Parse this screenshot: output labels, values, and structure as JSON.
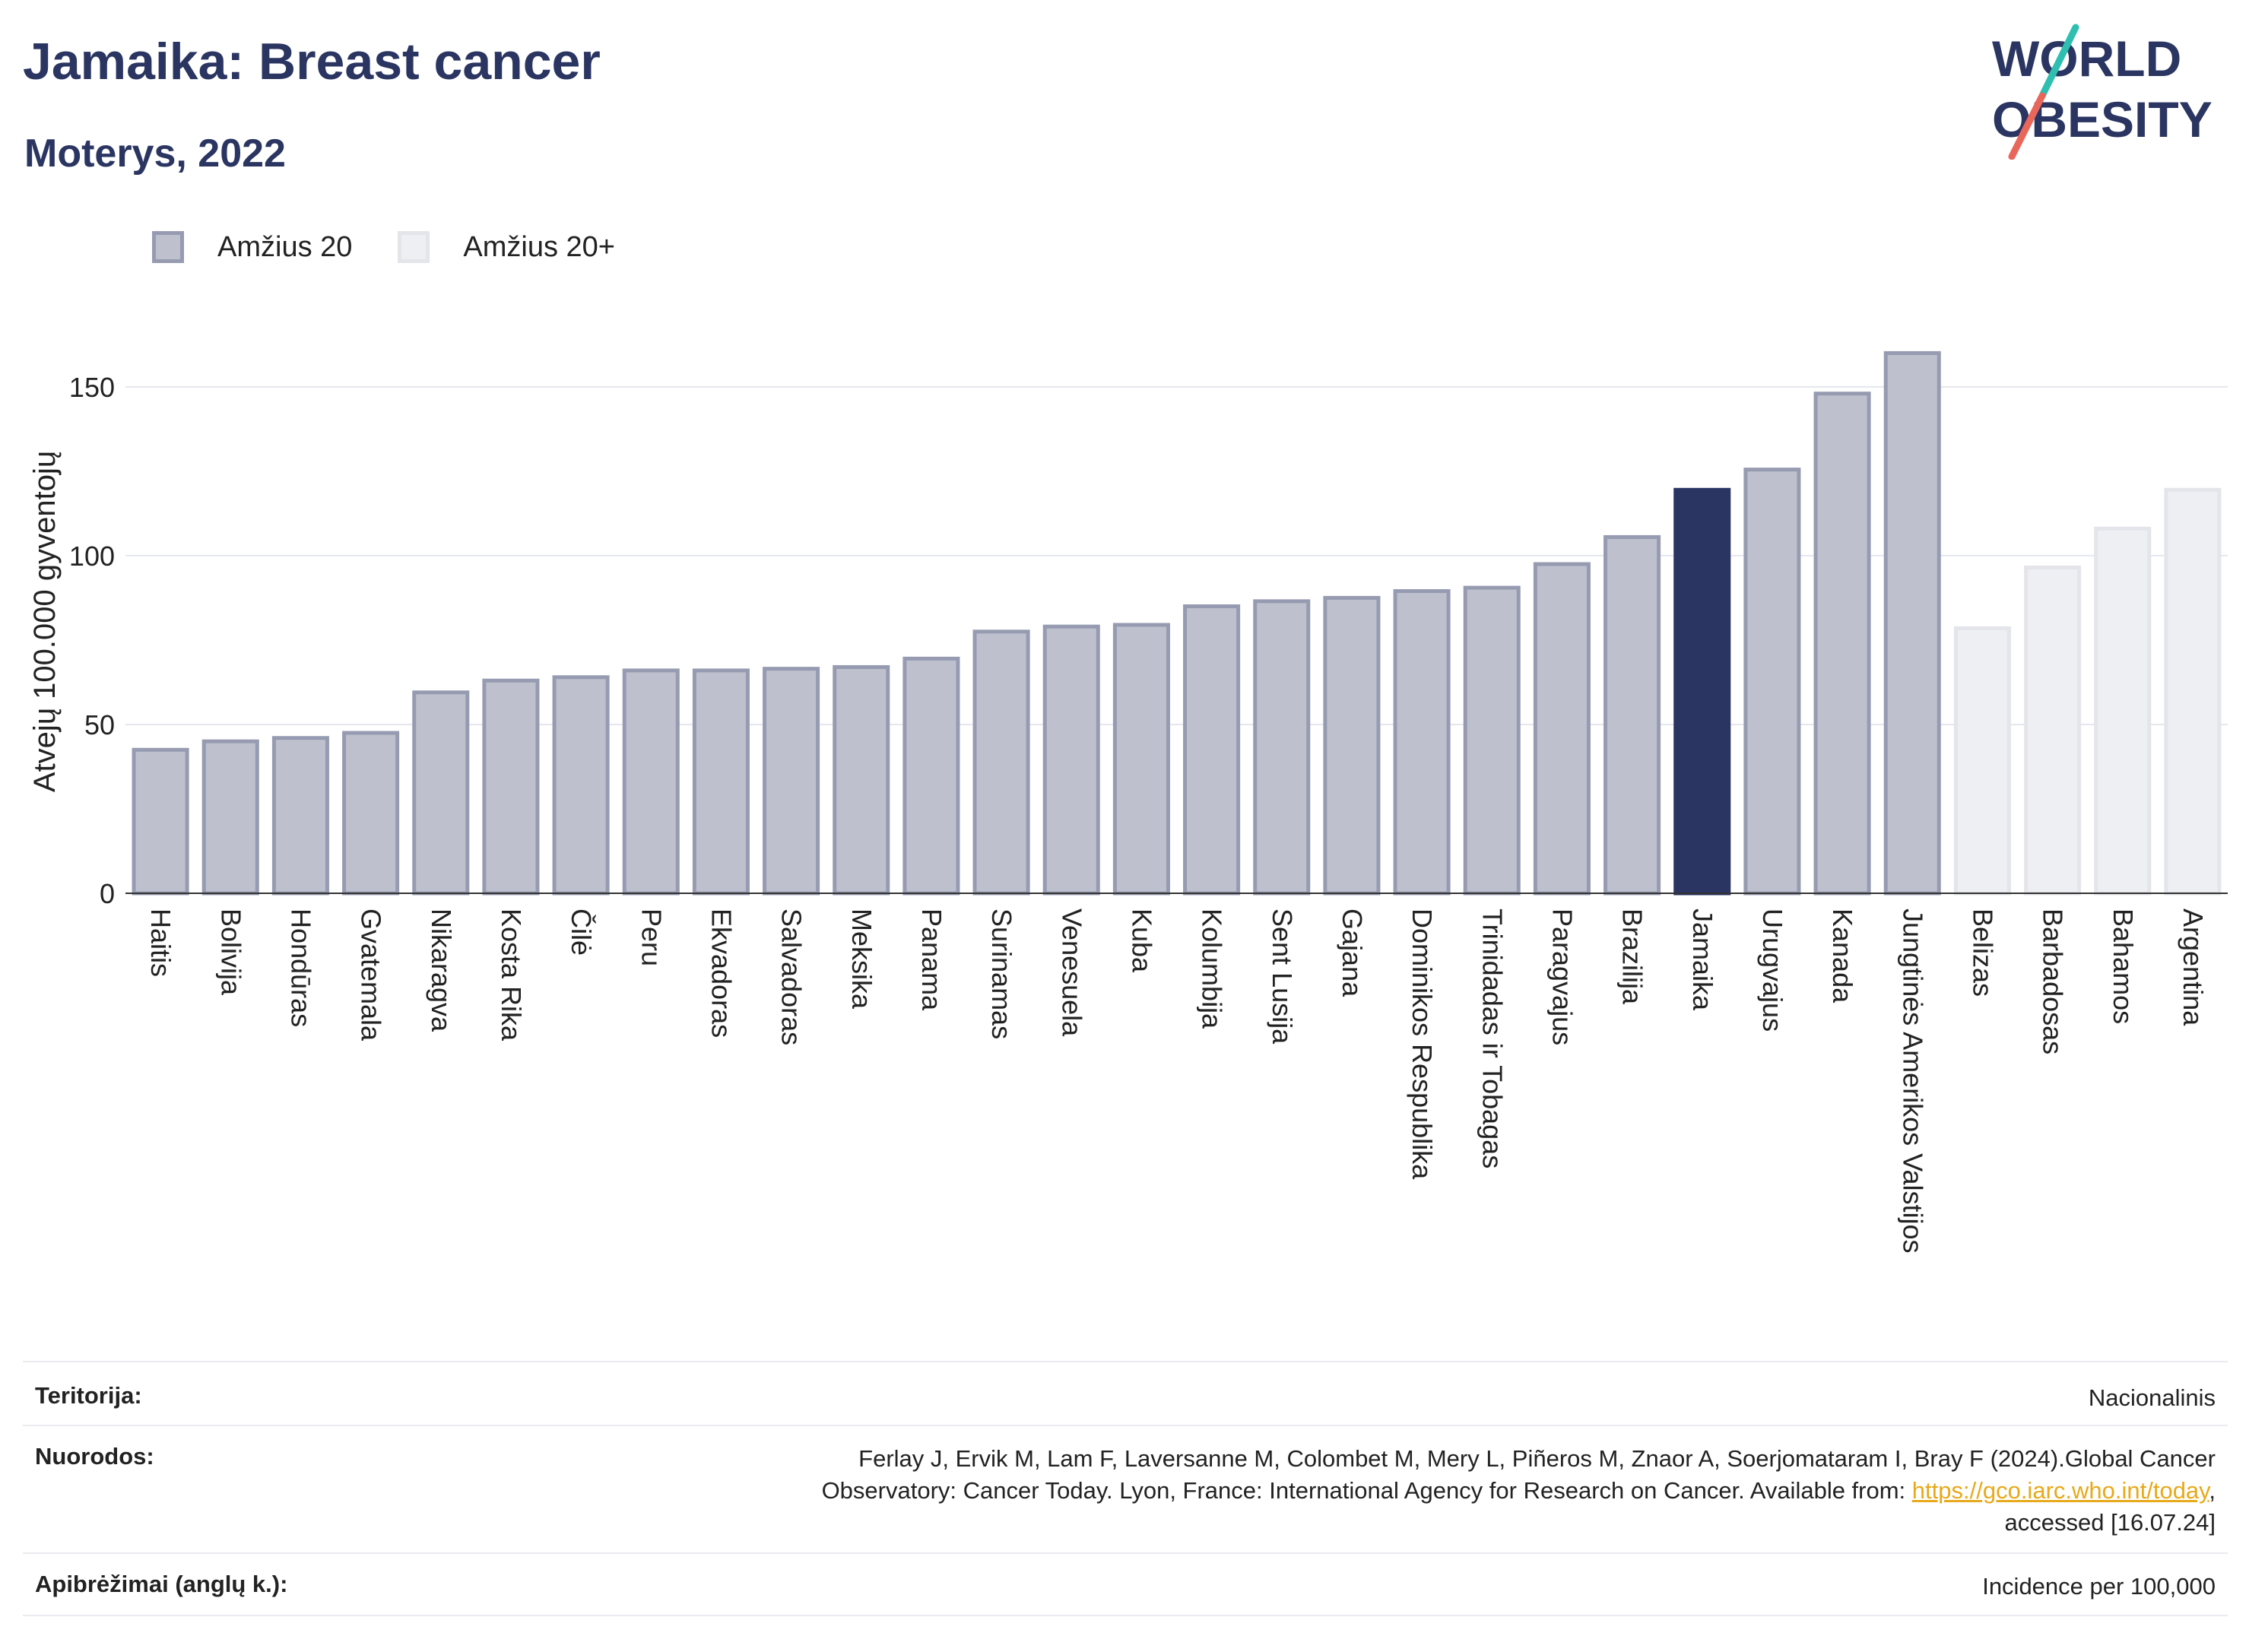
{
  "header": {
    "title": "Jamaika: Breast cancer",
    "subtitle": "Moterys, 2022"
  },
  "logo": {
    "line1": "WORLD",
    "line2": "OBESITY",
    "slash_colors": [
      "#2fbfb1",
      "#e8675a"
    ]
  },
  "legend": {
    "items": [
      {
        "label": "Amžius 20",
        "color": "#bec1cd"
      },
      {
        "label": "Amžius 20+",
        "color": "#eeeff3"
      }
    ]
  },
  "chart_data": {
    "type": "bar",
    "ylabel": "Atvejų 100.000 gyventojų",
    "xlabel": "",
    "ylim": [
      0,
      170
    ],
    "yticks": [
      0,
      50,
      100,
      150
    ],
    "grid": true,
    "legend_position": "top-left",
    "highlight": "Jamaika",
    "colors": {
      "age20_fill": "#bec1cd",
      "age20_border": "#969bb1",
      "age20plus_fill": "#eeeff3",
      "age20plus_border": "#e4e5ea",
      "highlight": "#2b3561"
    },
    "categories": [
      "Haitis",
      "Bolivija",
      "Hondūras",
      "Gvatemala",
      "Nikaragva",
      "Kosta Rika",
      "Čilė",
      "Peru",
      "Ekvadoras",
      "Salvadoras",
      "Meksika",
      "Panama",
      "Surinamas",
      "Venesuela",
      "Kuba",
      "Kolumbija",
      "Sent Lusija",
      "Gajana",
      "Dominikos Respublika",
      "Trinidadas ir Tobagas",
      "Paragvajus",
      "Brazilija",
      "Jamaika",
      "Urugvajus",
      "Kanada",
      "Jungtinės Amerikos Valstijos",
      "Belizas",
      "Barbadosas",
      "Bahamos",
      "Argentina"
    ],
    "values": [
      42.5,
      45,
      46,
      47.5,
      59.5,
      63,
      64,
      66,
      66,
      66.5,
      67,
      69.5,
      77.5,
      79,
      79.5,
      85,
      86.5,
      87.5,
      89.5,
      90.5,
      97.5,
      105.5,
      119.5,
      125.5,
      148,
      160,
      78.5,
      96.5,
      108,
      119.5
    ],
    "series_group": [
      "Amžius 20",
      "Amžius 20",
      "Amžius 20",
      "Amžius 20",
      "Amžius 20",
      "Amžius 20",
      "Amžius 20",
      "Amžius 20",
      "Amžius 20",
      "Amžius 20",
      "Amžius 20",
      "Amžius 20",
      "Amžius 20",
      "Amžius 20",
      "Amžius 20",
      "Amžius 20",
      "Amžius 20",
      "Amžius 20",
      "Amžius 20",
      "Amžius 20",
      "Amžius 20",
      "Amžius 20",
      "Amžius 20",
      "Amžius 20",
      "Amžius 20",
      "Amžius 20",
      "Amžius 20+",
      "Amžius 20+",
      "Amžius 20+",
      "Amžius 20+"
    ]
  },
  "meta": {
    "territory_label": "Teritorija:",
    "territory_value": "Nacionalinis",
    "references_label": "Nuorodos:",
    "references_line1": "Ferlay J, Ervik M, Lam F, Laversanne M, Colombet M, Mery L, Piñeros M, Znaor A, Soerjomataram I, Bray F (2024).Global Cancer",
    "references_line2_pre": "Observatory: Cancer Today. Lyon, France: International Agency for Research on Cancer. Available from: ",
    "references_link": "https://gco.iarc.who.int/today",
    "references_line2_post": ",",
    "references_line3": "accessed [16.07.24]",
    "definitions_label": "Apibrėžimai (anglų k.):",
    "definitions_value": "Incidence per 100,000"
  }
}
